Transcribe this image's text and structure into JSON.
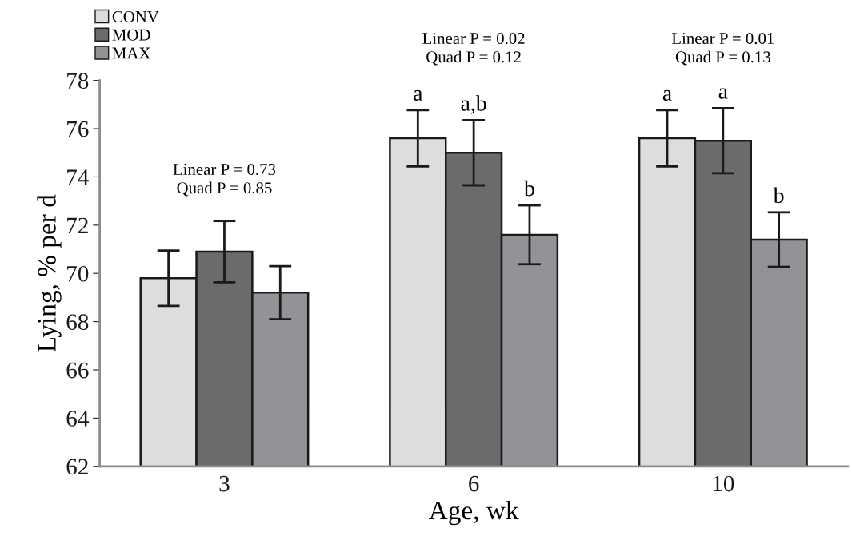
{
  "chart_data": {
    "type": "bar",
    "xlabel": "Age, wk",
    "ylabel": "Lying, % per d",
    "categories": [
      "3",
      "6",
      "10"
    ],
    "series": [
      {
        "name": "CONV",
        "color": "#dcdddf",
        "values": [
          69.8,
          75.6,
          75.6
        ],
        "errors": [
          1.15,
          1.17,
          1.17
        ],
        "value_labels": [
          null,
          "a",
          "a"
        ]
      },
      {
        "name": "MOD",
        "color": "#6b6b6b",
        "values": [
          70.9,
          75.0,
          75.5
        ],
        "errors": [
          1.27,
          1.35,
          1.35
        ],
        "value_labels": [
          null,
          "a,b",
          "a"
        ]
      },
      {
        "name": "MAX",
        "color": "#929396",
        "values": [
          69.2,
          71.6,
          71.4
        ],
        "errors": [
          1.1,
          1.22,
          1.13
        ],
        "value_labels": [
          null,
          "b",
          "b"
        ]
      }
    ],
    "ylim": [
      62,
      78
    ],
    "yticks": [
      62,
      64,
      66,
      68,
      70,
      72,
      74,
      76,
      78
    ],
    "annotations": [
      "Linear P = 0.73\nQuad P = 0.85",
      "Linear P = 0.02\nQuad P = 0.12",
      "Linear P = 0.01\nQuad P = 0.13"
    ],
    "grid": false,
    "legend": "top left"
  }
}
